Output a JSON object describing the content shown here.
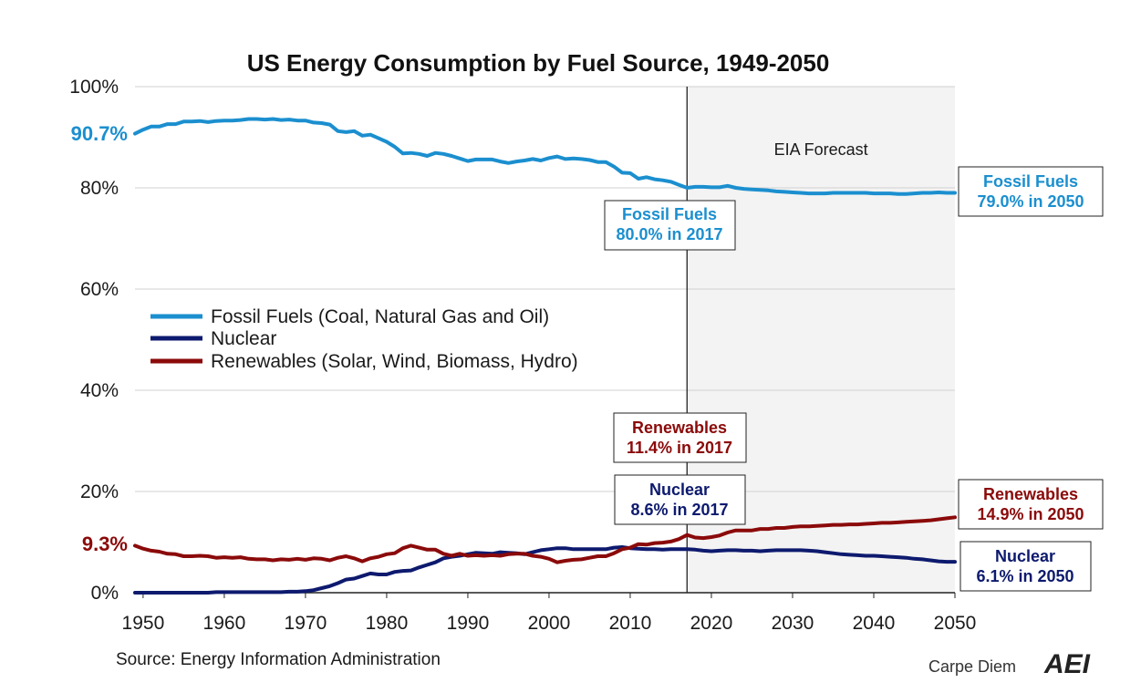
{
  "chart_data": {
    "type": "line",
    "title": "US Energy Consumption by Fuel Source, 1949-2050",
    "xlim": [
      1949,
      2050
    ],
    "ylim": [
      0,
      100
    ],
    "x_ticks": [
      1950,
      1960,
      1970,
      1980,
      1990,
      2000,
      2010,
      2020,
      2030,
      2040,
      2050
    ],
    "y_ticks": [
      0,
      20,
      40,
      60,
      80,
      100
    ],
    "y_tick_suffix": "%",
    "grid": true,
    "legend": {
      "placement": "center-left"
    },
    "forecast": {
      "start": 2017,
      "end": 2050,
      "label": "EIA Forecast"
    },
    "series": [
      {
        "name": "Fossil Fuels (Coal, Natural Gas and Oil)",
        "color": "#1b8fcf",
        "x": [
          1949,
          1950,
          1951,
          1952,
          1953,
          1954,
          1955,
          1956,
          1957,
          1958,
          1959,
          1960,
          1961,
          1962,
          1963,
          1964,
          1965,
          1966,
          1967,
          1968,
          1969,
          1970,
          1971,
          1972,
          1973,
          1974,
          1975,
          1976,
          1977,
          1978,
          1979,
          1980,
          1981,
          1982,
          1983,
          1984,
          1985,
          1986,
          1987,
          1988,
          1989,
          1990,
          1991,
          1992,
          1993,
          1994,
          1995,
          1996,
          1997,
          1998,
          1999,
          2000,
          2001,
          2002,
          2003,
          2004,
          2005,
          2006,
          2007,
          2008,
          2009,
          2010,
          2011,
          2012,
          2013,
          2014,
          2015,
          2016,
          2017,
          2018,
          2019,
          2020,
          2021,
          2022,
          2023,
          2024,
          2025,
          2026,
          2027,
          2028,
          2029,
          2030,
          2031,
          2032,
          2033,
          2034,
          2035,
          2036,
          2037,
          2038,
          2039,
          2040,
          2041,
          2042,
          2043,
          2044,
          2045,
          2046,
          2047,
          2048,
          2049,
          2050
        ],
        "values": [
          90.7,
          91.5,
          92.1,
          92.1,
          92.6,
          92.6,
          93.1,
          93.1,
          93.2,
          93.0,
          93.2,
          93.3,
          93.3,
          93.4,
          93.6,
          93.6,
          93.5,
          93.6,
          93.4,
          93.5,
          93.3,
          93.3,
          92.9,
          92.8,
          92.5,
          91.2,
          91.0,
          91.2,
          90.3,
          90.5,
          89.8,
          89.1,
          88.1,
          86.8,
          86.9,
          86.7,
          86.3,
          86.9,
          86.7,
          86.3,
          85.8,
          85.3,
          85.6,
          85.6,
          85.6,
          85.2,
          84.9,
          85.2,
          85.4,
          85.7,
          85.4,
          85.9,
          86.2,
          85.7,
          85.8,
          85.7,
          85.5,
          85.1,
          85.1,
          84.2,
          83.0,
          82.9,
          81.8,
          82.1,
          81.7,
          81.5,
          81.2,
          80.6,
          80.0,
          80.2,
          80.2,
          80.1,
          80.1,
          80.4,
          80.0,
          79.8,
          79.7,
          79.6,
          79.5,
          79.3,
          79.2,
          79.1,
          79.0,
          78.9,
          78.9,
          78.9,
          79.0,
          79.0,
          79.0,
          79.0,
          79.0,
          78.9,
          78.9,
          78.9,
          78.8,
          78.8,
          78.9,
          79.0,
          79.0,
          79.1,
          79.0,
          79.0
        ]
      },
      {
        "name": "Nuclear",
        "color": "#0d1a6e",
        "x": [
          1949,
          1950,
          1951,
          1952,
          1953,
          1954,
          1955,
          1956,
          1957,
          1958,
          1959,
          1960,
          1961,
          1962,
          1963,
          1964,
          1965,
          1966,
          1967,
          1968,
          1969,
          1970,
          1971,
          1972,
          1973,
          1974,
          1975,
          1976,
          1977,
          1978,
          1979,
          1980,
          1981,
          1982,
          1983,
          1984,
          1985,
          1986,
          1987,
          1988,
          1989,
          1990,
          1991,
          1992,
          1993,
          1994,
          1995,
          1996,
          1997,
          1998,
          1999,
          2000,
          2001,
          2002,
          2003,
          2004,
          2005,
          2006,
          2007,
          2008,
          2009,
          2010,
          2011,
          2012,
          2013,
          2014,
          2015,
          2016,
          2017,
          2018,
          2019,
          2020,
          2021,
          2022,
          2023,
          2024,
          2025,
          2026,
          2027,
          2028,
          2029,
          2030,
          2031,
          2032,
          2033,
          2034,
          2035,
          2036,
          2037,
          2038,
          2039,
          2040,
          2041,
          2042,
          2043,
          2044,
          2045,
          2046,
          2047,
          2048,
          2049,
          2050
        ],
        "values": [
          0.0,
          0.0,
          0.0,
          0.0,
          0.0,
          0.0,
          0.0,
          0.0,
          0.0,
          0.0,
          0.1,
          0.1,
          0.1,
          0.1,
          0.1,
          0.1,
          0.1,
          0.1,
          0.1,
          0.2,
          0.2,
          0.3,
          0.5,
          0.9,
          1.3,
          1.9,
          2.6,
          2.8,
          3.3,
          3.8,
          3.6,
          3.6,
          4.1,
          4.3,
          4.4,
          5.0,
          5.5,
          6.0,
          6.8,
          7.1,
          7.3,
          7.6,
          7.9,
          7.8,
          7.7,
          8.0,
          7.9,
          7.8,
          7.6,
          8.0,
          8.4,
          8.6,
          8.8,
          8.8,
          8.6,
          8.6,
          8.6,
          8.6,
          8.6,
          8.9,
          9.0,
          8.8,
          8.7,
          8.6,
          8.6,
          8.5,
          8.6,
          8.6,
          8.6,
          8.5,
          8.3,
          8.2,
          8.3,
          8.4,
          8.4,
          8.3,
          8.3,
          8.2,
          8.3,
          8.4,
          8.4,
          8.4,
          8.4,
          8.3,
          8.2,
          8.0,
          7.8,
          7.6,
          7.5,
          7.4,
          7.3,
          7.3,
          7.2,
          7.1,
          7.0,
          6.9,
          6.7,
          6.6,
          6.4,
          6.2,
          6.1,
          6.1
        ]
      },
      {
        "name": "Renewables (Solar, Wind, Biomass, Hydro)",
        "color": "#8b0a0a",
        "x": [
          1949,
          1950,
          1951,
          1952,
          1953,
          1954,
          1955,
          1956,
          1957,
          1958,
          1959,
          1960,
          1961,
          1962,
          1963,
          1964,
          1965,
          1966,
          1967,
          1968,
          1969,
          1970,
          1971,
          1972,
          1973,
          1974,
          1975,
          1976,
          1977,
          1978,
          1979,
          1980,
          1981,
          1982,
          1983,
          1984,
          1985,
          1986,
          1987,
          1988,
          1989,
          1990,
          1991,
          1992,
          1993,
          1994,
          1995,
          1996,
          1997,
          1998,
          1999,
          2000,
          2001,
          2002,
          2003,
          2004,
          2005,
          2006,
          2007,
          2008,
          2009,
          2010,
          2011,
          2012,
          2013,
          2014,
          2015,
          2016,
          2017,
          2018,
          2019,
          2020,
          2021,
          2022,
          2023,
          2024,
          2025,
          2026,
          2027,
          2028,
          2029,
          2030,
          2031,
          2032,
          2033,
          2034,
          2035,
          2036,
          2037,
          2038,
          2039,
          2040,
          2041,
          2042,
          2043,
          2044,
          2045,
          2046,
          2047,
          2048,
          2049,
          2050
        ],
        "values": [
          9.3,
          8.7,
          8.3,
          8.1,
          7.7,
          7.6,
          7.2,
          7.2,
          7.3,
          7.2,
          6.9,
          7.0,
          6.9,
          7.0,
          6.7,
          6.6,
          6.6,
          6.4,
          6.6,
          6.5,
          6.7,
          6.5,
          6.8,
          6.7,
          6.4,
          6.9,
          7.2,
          6.8,
          6.2,
          6.8,
          7.1,
          7.6,
          7.8,
          8.8,
          9.3,
          8.9,
          8.5,
          8.5,
          7.7,
          7.3,
          7.7,
          7.3,
          7.4,
          7.3,
          7.4,
          7.3,
          7.6,
          7.7,
          7.7,
          7.3,
          7.1,
          6.7,
          6.0,
          6.3,
          6.5,
          6.6,
          6.9,
          7.2,
          7.2,
          7.8,
          8.6,
          8.9,
          9.6,
          9.5,
          9.8,
          9.9,
          10.1,
          10.6,
          11.4,
          10.9,
          10.8,
          11.0,
          11.3,
          11.9,
          12.3,
          12.3,
          12.3,
          12.6,
          12.6,
          12.8,
          12.8,
          13.0,
          13.1,
          13.1,
          13.2,
          13.3,
          13.4,
          13.4,
          13.5,
          13.5,
          13.6,
          13.7,
          13.8,
          13.8,
          13.9,
          14.0,
          14.1,
          14.2,
          14.3,
          14.5,
          14.7,
          14.9
        ]
      }
    ],
    "annotations": {
      "fossil_start": "90.7%",
      "renew_start": "9.3%",
      "fossil_2017": [
        "Fossil Fuels",
        "80.0% in 2017"
      ],
      "renew_2017": [
        "Renewables",
        "11.4% in 2017"
      ],
      "nuclear_2017": [
        "Nuclear",
        "8.6% in 2017"
      ],
      "fossil_2050": [
        "Fossil Fuels",
        "79.0% in 2050"
      ],
      "renew_2050": [
        "Renewables",
        "14.9% in 2050"
      ],
      "nuclear_2050": [
        "Nuclear",
        "6.1% in 2050"
      ]
    },
    "source": "Source: Energy Information Administration",
    "brand": "Carpe Diem",
    "brand_logo": "AEI"
  }
}
